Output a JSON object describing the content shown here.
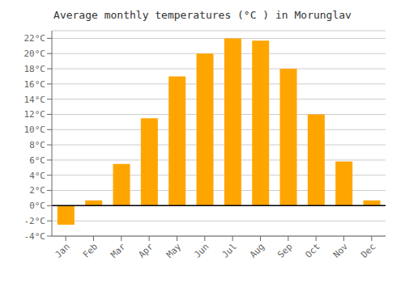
{
  "chart_data": {
    "type": "bar",
    "title": "Average monthly temperatures (°C ) in Morunglav",
    "categories": [
      "Jan",
      "Feb",
      "Mar",
      "Apr",
      "May",
      "Jun",
      "Jul",
      "Aug",
      "Sep",
      "Oct",
      "Nov",
      "Dec"
    ],
    "values": [
      -2.5,
      0.7,
      5.5,
      11.5,
      17.0,
      20.0,
      22.0,
      21.7,
      18.0,
      12.0,
      5.8,
      0.7
    ],
    "color": "#FFA500",
    "ylim": [
      -4,
      23
    ],
    "yticks": [
      {
        "value": -4,
        "label": "-4°C"
      },
      {
        "value": -2,
        "label": "-2°C"
      },
      {
        "value": 0,
        "label": "0°C"
      },
      {
        "value": 2,
        "label": "2°C"
      },
      {
        "value": 4,
        "label": "4°C"
      },
      {
        "value": 6,
        "label": "6°C"
      },
      {
        "value": 8,
        "label": "8°C"
      },
      {
        "value": 10,
        "label": "10°C"
      },
      {
        "value": 12,
        "label": "12°C"
      },
      {
        "value": 14,
        "label": "14°C"
      },
      {
        "value": 16,
        "label": "16°C"
      },
      {
        "value": 18,
        "label": "18°C"
      },
      {
        "value": 20,
        "label": "20°C"
      },
      {
        "value": 22,
        "label": "22°C"
      }
    ],
    "grid": true
  }
}
